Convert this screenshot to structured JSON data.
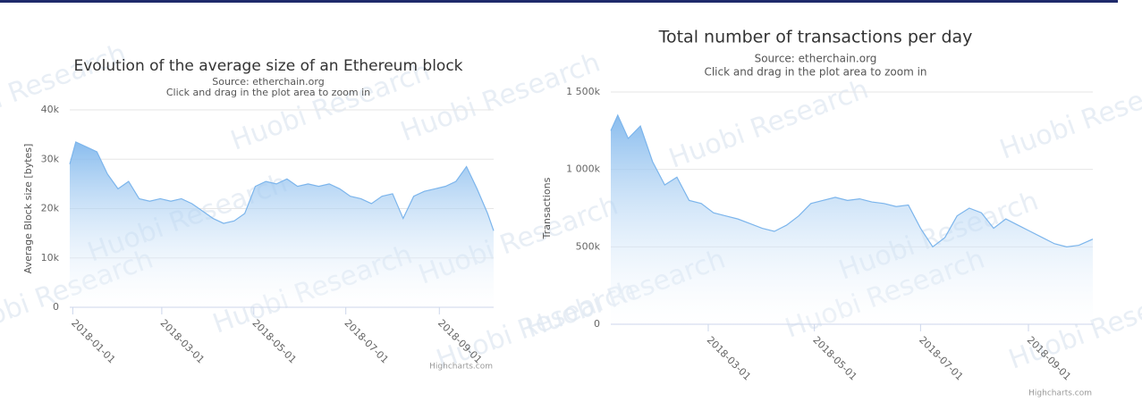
{
  "chart_data": [
    {
      "type": "area",
      "title": "Evolution of the average size of an Ethereum block",
      "subtitle": "Source: etherchain.org",
      "subtitle2": "Click and drag in the plot area to zoom in",
      "y_label": "Average Block size [bytes]",
      "credit": "Highcharts.com",
      "watermark": "Huobi Research",
      "color": "#7cb5ec",
      "grid": true,
      "x": [
        "2017-12-30",
        "2018-01-03",
        "2018-01-10",
        "2018-01-17",
        "2018-01-24",
        "2018-01-31",
        "2018-02-07",
        "2018-02-14",
        "2018-02-21",
        "2018-02-28",
        "2018-03-07",
        "2018-03-14",
        "2018-03-21",
        "2018-03-28",
        "2018-04-04",
        "2018-04-11",
        "2018-04-18",
        "2018-04-25",
        "2018-05-02",
        "2018-05-09",
        "2018-05-16",
        "2018-05-23",
        "2018-05-30",
        "2018-06-06",
        "2018-06-13",
        "2018-06-20",
        "2018-06-27",
        "2018-07-04",
        "2018-07-11",
        "2018-07-18",
        "2018-07-25",
        "2018-08-01",
        "2018-08-08",
        "2018-08-15",
        "2018-08-22",
        "2018-08-29",
        "2018-09-05",
        "2018-09-12",
        "2018-09-19",
        "2018-09-26",
        "2018-10-03",
        "2018-10-07"
      ],
      "series": [
        {
          "name": "Average Block size",
          "color": "#7cb5ec",
          "values": [
            29000,
            33500,
            32500,
            31500,
            27000,
            24000,
            25500,
            22000,
            21500,
            22000,
            21500,
            22000,
            21000,
            19500,
            18000,
            17000,
            17500,
            19000,
            24500,
            25500,
            25000,
            26000,
            24500,
            25000,
            24500,
            25000,
            24000,
            22500,
            22000,
            21000,
            22500,
            23000,
            18000,
            22500,
            23500,
            24000,
            24500,
            25500,
            28500,
            24000,
            19000,
            15500
          ]
        }
      ],
      "xlim": [
        "2017-12-30",
        "2018-10-07"
      ],
      "xticks": [
        "2018-01-01",
        "2018-03-01",
        "2018-05-01",
        "2018-07-01",
        "2018-09-01"
      ],
      "ylim": [
        0,
        40000
      ],
      "yticks": [
        0,
        {
          "value": 10000,
          "label": "10k"
        },
        {
          "value": 20000,
          "label": "20k"
        },
        {
          "value": 30000,
          "label": "30k"
        },
        {
          "value": 40000,
          "label": "40k"
        }
      ]
    },
    {
      "type": "area",
      "title": "Total number of transactions per day",
      "subtitle": "Source: etherchain.org",
      "subtitle2": "Click and drag in the plot area to zoom in",
      "y_label": "Transactions",
      "credit": "Highcharts.com",
      "color": "#7cb5ec",
      "grid": true,
      "x": [
        "2018-01-04",
        "2018-01-08",
        "2018-01-14",
        "2018-01-21",
        "2018-01-28",
        "2018-02-04",
        "2018-02-11",
        "2018-02-18",
        "2018-02-25",
        "2018-03-04",
        "2018-03-11",
        "2018-03-18",
        "2018-03-25",
        "2018-04-01",
        "2018-04-08",
        "2018-04-15",
        "2018-04-22",
        "2018-04-29",
        "2018-05-06",
        "2018-05-13",
        "2018-05-20",
        "2018-05-27",
        "2018-06-03",
        "2018-06-10",
        "2018-06-17",
        "2018-06-24",
        "2018-07-01",
        "2018-07-08",
        "2018-07-15",
        "2018-07-22",
        "2018-07-29",
        "2018-08-05",
        "2018-08-12",
        "2018-08-19",
        "2018-08-26",
        "2018-09-02",
        "2018-09-09",
        "2018-09-16",
        "2018-09-23",
        "2018-09-30",
        "2018-10-08"
      ],
      "series": [
        {
          "name": "Transactions",
          "color": "#7cb5ec",
          "values": [
            1250000,
            1350000,
            1200000,
            1280000,
            1050000,
            900000,
            950000,
            800000,
            780000,
            720000,
            700000,
            680000,
            650000,
            620000,
            600000,
            640000,
            700000,
            780000,
            800000,
            820000,
            800000,
            810000,
            790000,
            780000,
            760000,
            770000,
            620000,
            500000,
            560000,
            700000,
            750000,
            720000,
            620000,
            680000,
            640000,
            600000,
            560000,
            520000,
            500000,
            510000,
            550000
          ]
        }
      ],
      "xlim": [
        "2018-01-04",
        "2018-10-08"
      ],
      "xticks": [
        "2018-03-01",
        "2018-05-01",
        "2018-07-01",
        "2018-09-01"
      ],
      "ylim": [
        0,
        1500000
      ],
      "yticks": [
        0,
        {
          "value": 500000,
          "label": "500k"
        },
        {
          "value": 1000000,
          "label": "1 000k"
        },
        {
          "value": 1500000,
          "label": "1 500k"
        }
      ]
    }
  ]
}
